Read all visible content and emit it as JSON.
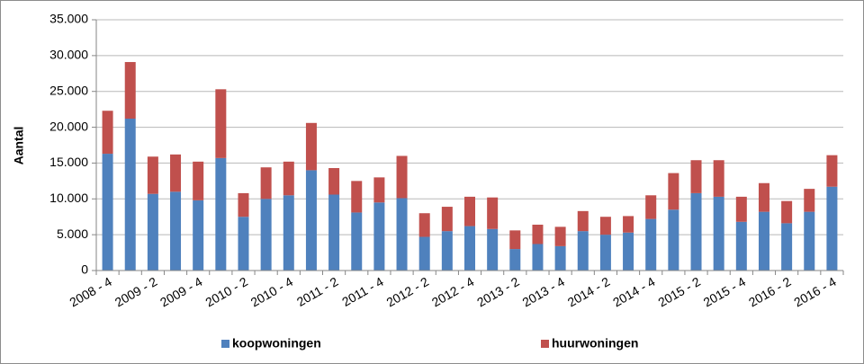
{
  "chart_data": {
    "type": "stacked_bar",
    "ylabel": "Aantal",
    "categories": [
      "2008 - 4",
      null,
      "2009 - 2",
      null,
      "2009 - 4",
      null,
      "2010 - 2",
      null,
      "2010 - 4",
      null,
      "2011 - 2",
      null,
      "2011 - 4",
      null,
      "2012 - 2",
      null,
      "2012 - 4",
      null,
      "2013 - 2",
      null,
      "2013 - 4",
      null,
      "2014 - 2",
      null,
      "2014 - 4",
      null,
      "2015 - 2",
      null,
      "2015 - 4",
      null,
      "2016 - 2",
      null,
      "2016 - 4"
    ],
    "series": [
      {
        "name": "koopwoningen",
        "color": "#4f81bd",
        "values": [
          16300,
          21200,
          10700,
          11000,
          9800,
          15700,
          7500,
          10000,
          10500,
          14000,
          10600,
          8100,
          9500,
          10100,
          4700,
          5500,
          6200,
          5800,
          3000,
          3700,
          3400,
          5500,
          5000,
          5300,
          7200,
          8500,
          10800,
          10300,
          6800,
          8200,
          6600,
          8200,
          11700
        ]
      },
      {
        "name": "huurwoningen",
        "color": "#c0504d",
        "values": [
          6000,
          7900,
          5200,
          5200,
          5400,
          9600,
          3300,
          4400,
          4700,
          6600,
          3700,
          4400,
          3500,
          5900,
          3300,
          3400,
          4100,
          4400,
          2600,
          2700,
          2700,
          2800,
          2500,
          2300,
          3300,
          5100,
          4600,
          5100,
          3500,
          4000,
          3100,
          3200,
          4400
        ]
      }
    ],
    "ylim": [
      0,
      35000
    ],
    "yticks": [
      0,
      {
        "value": 5000,
        "label": "5.000"
      },
      {
        "value": 10000,
        "label": "10.000"
      },
      {
        "value": 15000,
        "label": "15.000"
      },
      {
        "value": 20000,
        "label": "20.000"
      },
      {
        "value": 25000,
        "label": "25.000"
      },
      {
        "value": 30000,
        "label": "30.000"
      },
      {
        "value": 35000,
        "label": "35.000"
      }
    ],
    "grid": true
  }
}
